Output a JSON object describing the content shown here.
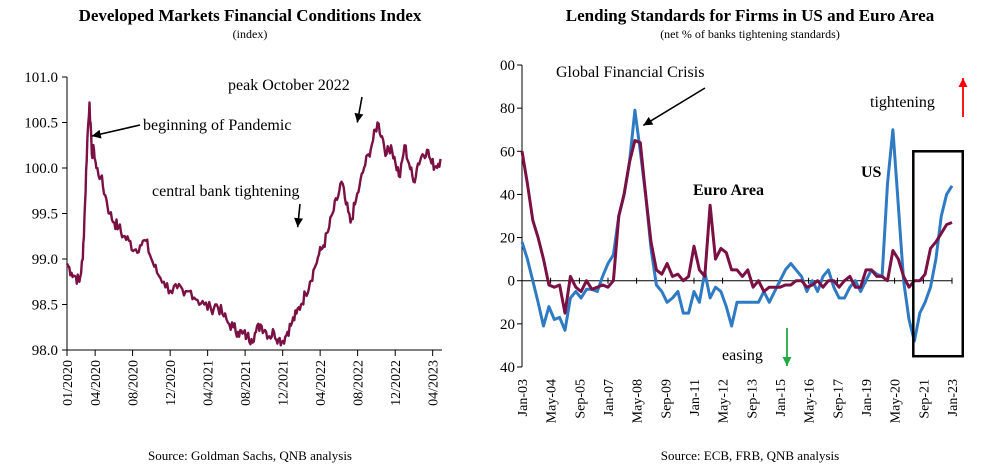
{
  "chart_data": [
    {
      "type": "line",
      "title": "Developed Markets Financial Conditions Index",
      "subtitle": "(index)",
      "source": "Source: Goldman Sachs, QNB analysis",
      "ylim": [
        98.0,
        101.0
      ],
      "yticks": [
        "98.0",
        "98.5",
        "99.0",
        "99.5",
        "100.0",
        "100.5",
        "101.0"
      ],
      "xlim": [
        2020.0,
        2023.333
      ],
      "xticks": [
        {
          "label": "01/2020",
          "x": 2020.0
        },
        {
          "label": "04/2020",
          "x": 2020.25
        },
        {
          "label": "08/2020",
          "x": 2020.583
        },
        {
          "label": "12/2020",
          "x": 2020.917
        },
        {
          "label": "04/2021",
          "x": 2021.25
        },
        {
          "label": "08/2021",
          "x": 2021.583
        },
        {
          "label": "12/2021",
          "x": 2021.917
        },
        {
          "label": "04/2022",
          "x": 2022.25
        },
        {
          "label": "08/2022",
          "x": 2022.583
        },
        {
          "label": "12/2022",
          "x": 2022.917
        },
        {
          "label": "04/2023",
          "x": 2023.25
        }
      ],
      "series": [
        {
          "name": "Financial Conditions Index",
          "color": "#7b1045",
          "x": [
            2020.0,
            2020.04,
            2020.08,
            2020.11,
            2020.14,
            2020.16,
            2020.18,
            2020.2,
            2020.22,
            2020.24,
            2020.26,
            2020.3,
            2020.34,
            2020.38,
            2020.42,
            2020.46,
            2020.5,
            2020.55,
            2020.6,
            2020.65,
            2020.7,
            2020.75,
            2020.8,
            2020.86,
            2020.92,
            2020.98,
            2021.04,
            2021.1,
            2021.16,
            2021.22,
            2021.28,
            2021.33,
            2021.38,
            2021.43,
            2021.48,
            2021.52,
            2021.56,
            2021.6,
            2021.64,
            2021.68,
            2021.72,
            2021.76,
            2021.8,
            2021.84,
            2021.88,
            2021.92,
            2021.96,
            2022.0,
            2022.04,
            2022.08,
            2022.12,
            2022.16,
            2022.2,
            2022.24,
            2022.28,
            2022.32,
            2022.36,
            2022.4,
            2022.44,
            2022.48,
            2022.52,
            2022.56,
            2022.6,
            2022.64,
            2022.68,
            2022.72,
            2022.76,
            2022.8,
            2022.84,
            2022.88,
            2022.92,
            2022.96,
            2023.0,
            2023.04,
            2023.08,
            2023.12,
            2023.16,
            2023.2,
            2023.24,
            2023.28,
            2023.32
          ],
          "values": [
            98.95,
            98.85,
            98.8,
            98.75,
            99.0,
            99.6,
            100.3,
            100.72,
            100.15,
            100.2,
            100.0,
            99.9,
            99.7,
            99.5,
            99.4,
            99.35,
            99.25,
            99.2,
            99.1,
            99.15,
            99.2,
            99.0,
            98.85,
            98.75,
            98.65,
            98.68,
            98.6,
            98.65,
            98.55,
            98.5,
            98.45,
            98.5,
            98.4,
            98.3,
            98.25,
            98.2,
            98.18,
            98.15,
            98.12,
            98.2,
            98.28,
            98.22,
            98.15,
            98.2,
            98.12,
            98.1,
            98.2,
            98.3,
            98.4,
            98.5,
            98.62,
            98.75,
            98.9,
            99.05,
            99.15,
            99.3,
            99.5,
            99.65,
            99.85,
            99.6,
            99.4,
            99.6,
            99.8,
            100.0,
            100.15,
            100.3,
            100.5,
            100.35,
            100.15,
            100.25,
            100.05,
            99.9,
            100.25,
            100.05,
            99.85,
            100.05,
            100.15,
            100.2,
            100.05,
            100.02,
            100.1
          ]
        }
      ],
      "annotations": [
        {
          "text": "beginning  of Pandemic",
          "arrow_to_x": 2020.22,
          "arrow_to_y": 100.35
        },
        {
          "text": "central bank tightening",
          "arrow_to_x": 2022.05,
          "arrow_to_y": 99.35
        },
        {
          "text": "peak October 2022",
          "arrow_to_x": 2022.58,
          "arrow_to_y": 100.5
        }
      ]
    },
    {
      "type": "line",
      "title": "Lending Standards for Firms in US and Euro Area",
      "subtitle": "(net % of banks tightening standards)",
      "source": "Source: ECB, FRB, QNB analysis",
      "ylim": [
        -40,
        100
      ],
      "yticks": [
        "-40",
        "-20",
        "0",
        "20",
        "40",
        "60",
        "80",
        "100"
      ],
      "xlim": [
        2003.0,
        2023.0
      ],
      "xticks": [
        {
          "label": "Jan-03",
          "x": 2003.0
        },
        {
          "label": "May-04",
          "x": 2004.33
        },
        {
          "label": "Sep-05",
          "x": 2005.67
        },
        {
          "label": "Jan-07",
          "x": 2007.0
        },
        {
          "label": "May-08",
          "x": 2008.33
        },
        {
          "label": "Sep-09",
          "x": 2009.67
        },
        {
          "label": "Jan-11",
          "x": 2011.0
        },
        {
          "label": "May-12",
          "x": 2012.33
        },
        {
          "label": "Sep-13",
          "x": 2013.67
        },
        {
          "label": "Jan-15",
          "x": 2015.0
        },
        {
          "label": "May-16",
          "x": 2016.33
        },
        {
          "label": "Sep-17",
          "x": 2017.67
        },
        {
          "label": "Jan-19",
          "x": 2019.0
        },
        {
          "label": "May-20",
          "x": 2020.33
        },
        {
          "label": "Sep-21",
          "x": 2021.67
        },
        {
          "label": "Jan-23",
          "x": 2023.0
        }
      ],
      "series": [
        {
          "name": "US",
          "color": "#2e7bc4",
          "x": [
            2003.0,
            2003.25,
            2003.5,
            2003.75,
            2004.0,
            2004.25,
            2004.5,
            2004.75,
            2005.0,
            2005.25,
            2005.5,
            2005.75,
            2006.0,
            2006.25,
            2006.5,
            2006.75,
            2007.0,
            2007.25,
            2007.5,
            2007.75,
            2008.0,
            2008.25,
            2008.5,
            2008.75,
            2009.0,
            2009.25,
            2009.5,
            2009.75,
            2010.0,
            2010.25,
            2010.5,
            2010.75,
            2011.0,
            2011.25,
            2011.5,
            2011.75,
            2012.0,
            2012.25,
            2012.5,
            2012.75,
            2013.0,
            2013.25,
            2013.5,
            2013.75,
            2014.0,
            2014.25,
            2014.5,
            2014.75,
            2015.0,
            2015.25,
            2015.5,
            2015.75,
            2016.0,
            2016.25,
            2016.5,
            2016.75,
            2017.0,
            2017.25,
            2017.5,
            2017.75,
            2018.0,
            2018.25,
            2018.5,
            2018.75,
            2019.0,
            2019.25,
            2019.5,
            2019.75,
            2020.0,
            2020.25,
            2020.5,
            2020.75,
            2021.0,
            2021.25,
            2021.5,
            2021.75,
            2022.0,
            2022.25,
            2022.5,
            2022.75,
            2023.0
          ],
          "values": [
            18,
            10,
            0,
            -10,
            -21,
            -12,
            -18,
            -17,
            -23,
            -8,
            -5,
            -8,
            -4,
            -4,
            -5,
            2,
            8,
            12,
            30,
            40,
            55,
            79,
            60,
            40,
            15,
            -2,
            -5,
            -10,
            -8,
            -5,
            -15,
            -15,
            -5,
            -10,
            4,
            -8,
            -3,
            -5,
            -12,
            -21,
            -10,
            -10,
            -10,
            -10,
            -10,
            -5,
            -10,
            -5,
            0,
            5,
            8,
            5,
            2,
            -5,
            0,
            -5,
            2,
            5,
            -3,
            -8,
            -8,
            -3,
            0,
            -5,
            0,
            5,
            3,
            2,
            45,
            70,
            35,
            0,
            -18,
            -28,
            -15,
            -10,
            -3,
            10,
            30,
            40,
            44
          ]
        },
        {
          "name": "Euro Area",
          "color": "#7b1045",
          "x": [
            2003.0,
            2003.25,
            2003.5,
            2003.75,
            2004.0,
            2004.25,
            2004.5,
            2004.75,
            2005.0,
            2005.25,
            2005.5,
            2005.75,
            2006.0,
            2006.25,
            2006.5,
            2006.75,
            2007.0,
            2007.25,
            2007.5,
            2007.75,
            2008.0,
            2008.25,
            2008.5,
            2008.75,
            2009.0,
            2009.25,
            2009.5,
            2009.75,
            2010.0,
            2010.25,
            2010.5,
            2010.75,
            2011.0,
            2011.25,
            2011.5,
            2011.75,
            2012.0,
            2012.25,
            2012.5,
            2012.75,
            2013.0,
            2013.25,
            2013.5,
            2013.75,
            2014.0,
            2014.25,
            2014.5,
            2014.75,
            2015.0,
            2015.25,
            2015.5,
            2015.75,
            2016.0,
            2016.25,
            2016.5,
            2016.75,
            2017.0,
            2017.25,
            2017.5,
            2017.75,
            2018.0,
            2018.25,
            2018.5,
            2018.75,
            2019.0,
            2019.25,
            2019.5,
            2019.75,
            2020.0,
            2020.25,
            2020.5,
            2020.75,
            2021.0,
            2021.25,
            2021.5,
            2021.75,
            2022.0,
            2022.25,
            2022.5,
            2022.75,
            2023.0
          ],
          "values": [
            60,
            45,
            28,
            20,
            10,
            -2,
            -3,
            -2,
            -15,
            2,
            -3,
            -5,
            0,
            -4,
            -3,
            -2,
            -3,
            0,
            30,
            40,
            55,
            65,
            64,
            40,
            18,
            5,
            3,
            8,
            2,
            3,
            0,
            2,
            16,
            5,
            2,
            35,
            10,
            15,
            13,
            5,
            5,
            2,
            5,
            -3,
            0,
            -5,
            -3,
            -3,
            -3,
            -2,
            -2,
            0,
            0,
            -3,
            -2,
            0,
            -3,
            0,
            0,
            -3,
            0,
            2,
            -3,
            -3,
            5,
            5,
            2,
            2,
            0,
            14,
            10,
            2,
            -3,
            0,
            0,
            3,
            15,
            18,
            22,
            26,
            27
          ]
        }
      ],
      "annotations": [
        {
          "text": "Global Financial Crisis",
          "arrow_to_x": 2008.55,
          "arrow_to_y": 72
        },
        {
          "text": "Euro Area"
        },
        {
          "text": "US"
        },
        {
          "text": "tightening",
          "arrow": "up",
          "arrow_color": "#ff0000"
        },
        {
          "text": "easing",
          "arrow": "down",
          "arrow_color": "#22aa44"
        }
      ],
      "highlight_box": {
        "x_from": 2021.2,
        "x_to": 2023.5,
        "y_from": -35,
        "y_to": 60
      }
    }
  ]
}
